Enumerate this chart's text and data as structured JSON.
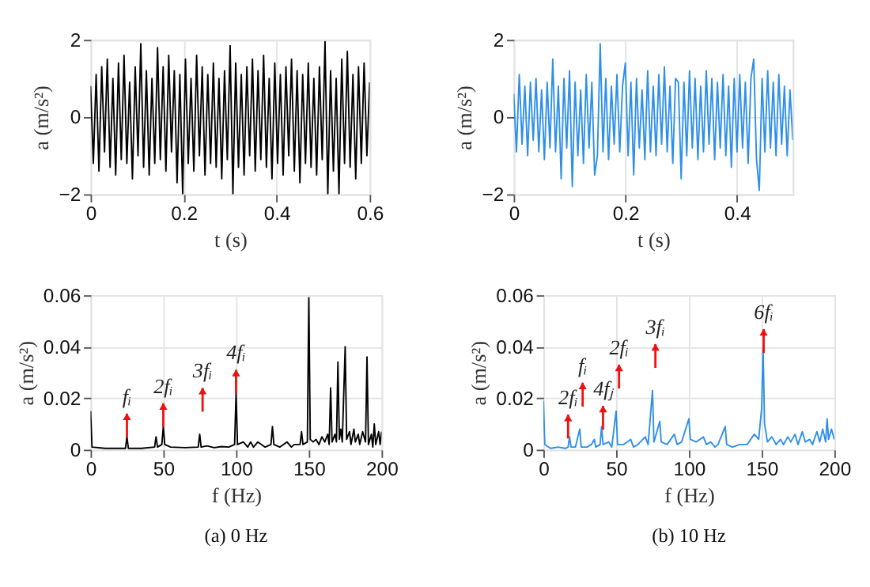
{
  "chart_data": [
    {
      "type": "line",
      "xlabel": "t (s)",
      "ylabel": "a (m/s²)",
      "xlim": [
        0,
        0.6
      ],
      "ylim": [
        -2,
        2
      ],
      "xticks": [
        0,
        0.2,
        0.4,
        0.6
      ],
      "yticks": [
        -2,
        0,
        2
      ],
      "grid": true,
      "x": [
        0,
        0.006,
        0.012,
        0.018,
        0.024,
        0.03,
        0.036,
        0.042,
        0.048,
        0.054,
        0.06,
        0.066,
        0.072,
        0.078,
        0.084,
        0.09,
        0.096,
        0.102,
        0.108,
        0.114,
        0.12,
        0.126,
        0.132,
        0.138,
        0.144,
        0.15,
        0.156,
        0.162,
        0.168,
        0.174,
        0.18,
        0.186,
        0.192,
        0.198,
        0.204,
        0.21,
        0.216,
        0.222,
        0.228,
        0.234,
        0.24,
        0.246,
        0.252,
        0.258,
        0.264,
        0.27,
        0.276,
        0.282,
        0.288,
        0.294,
        0.3,
        0.306,
        0.312,
        0.318,
        0.324,
        0.33,
        0.336,
        0.342,
        0.348,
        0.354,
        0.36,
        0.366,
        0.372,
        0.378,
        0.384,
        0.39,
        0.396,
        0.402,
        0.408,
        0.414,
        0.42,
        0.426,
        0.432,
        0.438,
        0.444,
        0.45,
        0.456,
        0.462,
        0.468,
        0.474,
        0.48,
        0.486,
        0.492,
        0.498,
        0.504,
        0.51,
        0.516,
        0.522,
        0.528,
        0.534,
        0.54,
        0.546,
        0.552,
        0.558,
        0.564,
        0.57,
        0.576,
        0.582,
        0.588,
        0.594,
        0.6
      ],
      "series": [
        {
          "color": "#000000",
          "values": [
            0.8,
            -1.2,
            1.1,
            -1.4,
            1.3,
            -0.9,
            1.5,
            -1.3,
            1.0,
            -1.5,
            1.4,
            -1.1,
            1.6,
            -1.2,
            0.9,
            -1.6,
            1.3,
            -1.0,
            1.9,
            -1.3,
            1.2,
            -1.5,
            1.0,
            -1.2,
            1.8,
            -1.1,
            1.3,
            -1.4,
            1.6,
            -0.9,
            1.2,
            -1.7,
            1.1,
            -2.0,
            1.5,
            -1.2,
            1.0,
            -1.4,
            1.6,
            -1.0,
            1.3,
            -1.5,
            1.1,
            -1.2,
            1.4,
            -1.3,
            1.0,
            -1.6,
            1.2,
            -1.1,
            1.85,
            -2.0,
            1.4,
            -1.3,
            1.1,
            -1.5,
            1.3,
            -1.0,
            1.5,
            -1.4,
            1.2,
            -1.1,
            1.6,
            -1.3,
            1.0,
            -1.6,
            1.4,
            -1.2,
            1.1,
            -1.5,
            1.3,
            -1.0,
            1.5,
            -1.4,
            1.2,
            -1.7,
            1.1,
            -1.2,
            1.4,
            -1.3,
            1.0,
            -1.5,
            1.3,
            -1.1,
            1.95,
            -2.0,
            1.2,
            -1.4,
            1.0,
            -2.0,
            1.5,
            -1.2,
            1.7,
            -1.3,
            1.1,
            -1.6,
            1.3,
            -1.2,
            1.4,
            -1.0,
            0.9
          ]
        }
      ]
    },
    {
      "type": "line",
      "xlabel": "t (s)",
      "ylabel": "a (m/s²)",
      "xlim": [
        0,
        0.5
      ],
      "ylim": [
        -2,
        2
      ],
      "xticks": [
        0,
        0.2,
        0.4
      ],
      "yticks": [
        -2,
        0,
        2
      ],
      "grid": true,
      "x": [
        0,
        0.005,
        0.01,
        0.015,
        0.02,
        0.025,
        0.03,
        0.035,
        0.04,
        0.045,
        0.05,
        0.055,
        0.06,
        0.065,
        0.07,
        0.075,
        0.08,
        0.085,
        0.09,
        0.095,
        0.1,
        0.105,
        0.11,
        0.115,
        0.12,
        0.125,
        0.13,
        0.135,
        0.14,
        0.145,
        0.15,
        0.155,
        0.16,
        0.165,
        0.17,
        0.175,
        0.18,
        0.185,
        0.19,
        0.195,
        0.2,
        0.205,
        0.21,
        0.215,
        0.22,
        0.225,
        0.23,
        0.235,
        0.24,
        0.245,
        0.25,
        0.255,
        0.26,
        0.265,
        0.27,
        0.275,
        0.28,
        0.285,
        0.29,
        0.295,
        0.3,
        0.305,
        0.31,
        0.315,
        0.32,
        0.325,
        0.33,
        0.335,
        0.34,
        0.345,
        0.35,
        0.355,
        0.36,
        0.365,
        0.37,
        0.375,
        0.38,
        0.385,
        0.39,
        0.395,
        0.4,
        0.405,
        0.41,
        0.415,
        0.42,
        0.425,
        0.43,
        0.435,
        0.44,
        0.445,
        0.45,
        0.455,
        0.46,
        0.465,
        0.47,
        0.475,
        0.48,
        0.485,
        0.49,
        0.495,
        0.5
      ],
      "series": [
        {
          "color": "#2e8fe8",
          "values": [
            0.6,
            -0.9,
            1.1,
            -0.7,
            0.8,
            -1.0,
            0.9,
            -0.6,
            1.0,
            -0.9,
            0.7,
            -1.1,
            0.9,
            -0.8,
            1.5,
            -0.9,
            0.8,
            -1.6,
            1.0,
            -0.8,
            1.2,
            -1.8,
            0.9,
            -1.0,
            0.7,
            -1.2,
            1.1,
            -0.8,
            0.9,
            -1.5,
            -1.0,
            1.9,
            -0.9,
            1.0,
            -1.1,
            0.8,
            -0.7,
            1.1,
            -0.9,
            0.8,
            1.4,
            -1.0,
            0.9,
            -1.5,
            1.0,
            -0.8,
            0.7,
            -1.1,
            1.2,
            -0.9,
            0.8,
            -1.0,
            1.1,
            -0.7,
            1.3,
            -0.9,
            0.8,
            -1.2,
            1.0,
            0.9,
            -1.6,
            0.9,
            -1.0,
            1.2,
            -0.8,
            1.0,
            -1.1,
            0.8,
            -0.9,
            1.2,
            -0.7,
            1.0,
            -1.1,
            0.9,
            -0.8,
            1.1,
            -1.0,
            0.8,
            -1.3,
            1.0,
            -0.9,
            1.1,
            -0.8,
            0.9,
            -1.2,
            1.0,
            1.5,
            -1.1,
            -1.9,
            1.0,
            -0.9,
            1.2,
            -0.8,
            0.9,
            -1.0,
            1.1,
            -0.7,
            0.8,
            -1.0,
            0.7,
            -0.6
          ]
        }
      ]
    },
    {
      "type": "line",
      "title": "(a) 0 Hz",
      "xlabel": "f (Hz)",
      "ylabel": "a (m/s²)",
      "xlim": [
        0,
        200
      ],
      "ylim": [
        0,
        0.06
      ],
      "xticks": [
        0,
        50,
        100,
        150,
        200
      ],
      "yticks": [
        0,
        0.02,
        0.04,
        0.06
      ],
      "grid": true,
      "x": [
        0,
        1,
        10,
        20,
        24,
        25,
        26,
        35,
        44,
        45,
        46,
        49,
        50,
        51,
        55,
        65,
        74,
        75,
        76,
        80,
        85,
        90,
        95,
        99,
        100,
        101,
        105,
        108,
        110,
        112,
        115,
        120,
        124,
        125,
        126,
        130,
        135,
        138,
        140,
        144,
        145,
        146,
        149,
        150,
        151,
        153,
        155,
        157,
        159,
        161,
        163,
        164,
        165,
        166,
        168,
        169,
        170,
        171,
        172,
        173,
        175,
        176,
        178,
        179,
        181,
        182,
        184,
        185,
        187,
        189,
        190,
        191,
        193,
        194,
        195,
        196,
        198,
        199,
        200
      ],
      "series": [
        {
          "color": "#000000",
          "values": [
            0.015,
            0.001,
            0.0005,
            0.0005,
            0.0005,
            0.005,
            0.0005,
            0.0005,
            0.001,
            0.005,
            0.001,
            0.002,
            0.009,
            0.002,
            0.001,
            0.0008,
            0.001,
            0.006,
            0.001,
            0.0015,
            0.0008,
            0.0012,
            0.001,
            0.002,
            0.022,
            0.002,
            0.003,
            0.001,
            0.003,
            0.001,
            0.003,
            0.001,
            0.002,
            0.009,
            0.002,
            0.001,
            0.003,
            0.001,
            0.002,
            0.002,
            0.007,
            0.002,
            0.003,
            0.059,
            0.004,
            0.003,
            0.004,
            0.002,
            0.005,
            0.003,
            0.006,
            0.002,
            0.024,
            0.003,
            0.006,
            0.003,
            0.034,
            0.004,
            0.008,
            0.003,
            0.04,
            0.004,
            0.007,
            0.002,
            0.008,
            0.003,
            0.006,
            0.002,
            0.007,
            0.003,
            0.036,
            0.002,
            0.006,
            0.001,
            0.01,
            0.002,
            0.007,
            0.002,
            0.007
          ]
        }
      ],
      "annotations": [
        {
          "text": "fᵢ",
          "x": 25,
          "y": 0.014
        },
        {
          "text": "2fᵢ",
          "x": 50,
          "y": 0.018
        },
        {
          "text": "3fᵢ",
          "x": 77,
          "y": 0.024
        },
        {
          "text": "4fᵢ",
          "x": 100,
          "y": 0.031
        }
      ]
    },
    {
      "type": "line",
      "title": "(b) 10 Hz",
      "xlabel": "f (Hz)",
      "ylabel": "a (m/s²)",
      "xlim": [
        0,
        200
      ],
      "ylim": [
        0,
        0.06
      ],
      "xticks": [
        0,
        50,
        100,
        150,
        200
      ],
      "yticks": [
        0,
        0.02,
        0.04,
        0.06
      ],
      "grid": true,
      "x": [
        0,
        1,
        5,
        10,
        15,
        17,
        18,
        19,
        22,
        25,
        26,
        30,
        33,
        35,
        36,
        39,
        40,
        41,
        45,
        47,
        50,
        51,
        55,
        60,
        62,
        65,
        70,
        72,
        75,
        76,
        80,
        81,
        85,
        90,
        92,
        95,
        100,
        101,
        105,
        110,
        112,
        115,
        118,
        120,
        125,
        126,
        130,
        135,
        140,
        145,
        148,
        150,
        151,
        152,
        154,
        157,
        160,
        163,
        165,
        168,
        170,
        173,
        175,
        178,
        180,
        183,
        185,
        188,
        190,
        192,
        194,
        195,
        196,
        198,
        200
      ],
      "series": [
        {
          "color": "#2e8fe8",
          "values": [
            0.019,
            0.002,
            0.0005,
            0.001,
            0.0005,
            0.001,
            0.005,
            0.001,
            0.001,
            0.008,
            0.001,
            0.001,
            0.002,
            0.004,
            0.001,
            0.002,
            0.009,
            0.002,
            0.003,
            0.001,
            0.015,
            0.002,
            0.002,
            0.004,
            0.001,
            0.002,
            0.005,
            0.002,
            0.023,
            0.003,
            0.011,
            0.003,
            0.002,
            0.006,
            0.002,
            0.003,
            0.012,
            0.004,
            0.003,
            0.005,
            0.002,
            0.003,
            0.001,
            0.002,
            0.009,
            0.002,
            0.001,
            0.002,
            0.002,
            0.006,
            0.004,
            0.016,
            0.04,
            0.01,
            0.003,
            0.005,
            0.002,
            0.004,
            0.002,
            0.005,
            0.003,
            0.006,
            0.002,
            0.007,
            0.003,
            0.004,
            0.002,
            0.007,
            0.003,
            0.008,
            0.003,
            0.012,
            0.004,
            0.008,
            0.004
          ]
        }
      ],
      "annotations": [
        {
          "text": "2fᵢ",
          "x": 17,
          "y": 0.0136
        },
        {
          "text": "fᵢ",
          "x": 27,
          "y": 0.026
        },
        {
          "text": "4fⱼ",
          "x": 41,
          "y": 0.017
        },
        {
          "text": "2fᵢ",
          "x": 52,
          "y": 0.033
        },
        {
          "text": "3fᵢ",
          "x": 77,
          "y": 0.041
        },
        {
          "text": "6fᵢ",
          "x": 151.4,
          "y": 0.0468
        }
      ]
    }
  ]
}
